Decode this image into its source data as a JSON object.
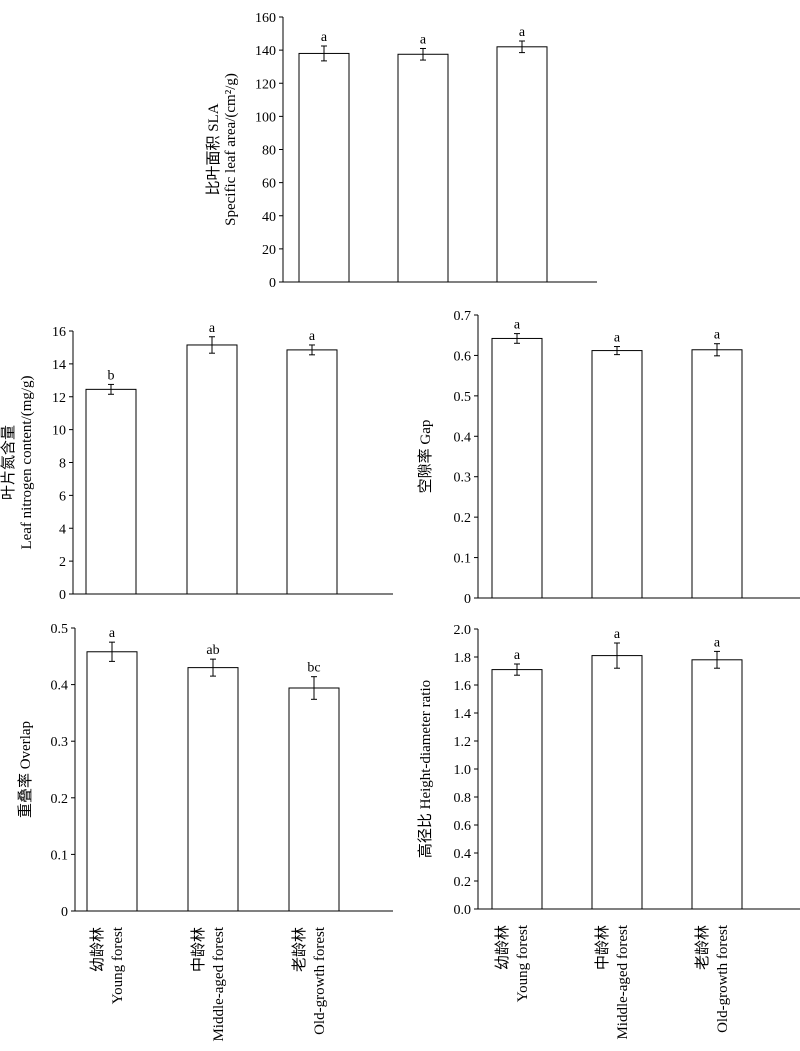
{
  "chart_data": [
    {
      "id": "sla",
      "type": "bar",
      "ylabel_cn": "比叶面积 SLA",
      "ylabel_en": "Specific leaf area/(cm²/g)",
      "ylim": [
        0,
        160
      ],
      "ytick_values": [
        0,
        20,
        40,
        60,
        80,
        100,
        120,
        140,
        160
      ],
      "ytick_labels": [
        "0",
        "20",
        "40",
        "60",
        "80",
        "100",
        "120",
        "140",
        "160"
      ],
      "categories": [
        "Young forest",
        "Middle-aged forest",
        "Old-growth forest"
      ],
      "values": [
        138,
        137.5,
        142
      ],
      "errors": [
        4.5,
        3.5,
        3.5
      ],
      "letters": [
        "a",
        "a",
        "a"
      ]
    },
    {
      "id": "leaf-nitrogen",
      "type": "bar",
      "ylabel_cn": "叶片氮含量",
      "ylabel_en": "Leaf nitrogen content/(mg/g)",
      "ylim": [
        0,
        16
      ],
      "ytick_values": [
        0,
        2,
        4,
        6,
        8,
        10,
        12,
        14,
        16
      ],
      "ytick_labels": [
        "0",
        "2",
        "4",
        "6",
        "8",
        "10",
        "12",
        "14",
        "16"
      ],
      "categories": [
        "Young forest",
        "Middle-aged forest",
        "Old-growth forest"
      ],
      "values": [
        12.45,
        15.15,
        14.85
      ],
      "errors": [
        0.3,
        0.5,
        0.3
      ],
      "letters": [
        "b",
        "a",
        "a"
      ]
    },
    {
      "id": "gap",
      "type": "bar",
      "ylabel_cn": "空隙率 Gap",
      "ylabel_en": "",
      "ylim": [
        0,
        0.7
      ],
      "ytick_values": [
        0,
        0.1,
        0.2,
        0.3,
        0.4,
        0.5,
        0.6,
        0.7
      ],
      "ytick_labels": [
        "0",
        "0.1",
        "0.2",
        "0.3",
        "0.4",
        "0.5",
        "0.6",
        "0.7"
      ],
      "categories": [
        "Young forest",
        "Middle-aged forest",
        "Old-growth forest"
      ],
      "values": [
        0.642,
        0.612,
        0.614
      ],
      "errors": [
        0.012,
        0.01,
        0.015
      ],
      "letters": [
        "a",
        "a",
        "a"
      ]
    },
    {
      "id": "overlap",
      "type": "bar",
      "ylabel_cn": "重叠率 Overlap",
      "ylabel_en": "",
      "ylim": [
        0,
        0.5
      ],
      "ytick_values": [
        0,
        0.1,
        0.2,
        0.3,
        0.4,
        0.5
      ],
      "ytick_labels": [
        "0",
        "0.1",
        "0.2",
        "0.3",
        "0.4",
        "0.5"
      ],
      "categories": [
        "Young forest",
        "Middle-aged forest",
        "Old-growth forest"
      ],
      "values": [
        0.458,
        0.43,
        0.394
      ],
      "errors": [
        0.017,
        0.015,
        0.02
      ],
      "letters": [
        "a",
        "ab",
        "bc"
      ],
      "category_labels_cn": [
        "幼龄林",
        "中龄林",
        "老龄林"
      ],
      "category_labels_en": [
        "Young forest",
        "Middle-aged forest",
        "Old-growth forest"
      ]
    },
    {
      "id": "height-diameter",
      "type": "bar",
      "ylabel_cn": "高径比 Height-diameter ratio",
      "ylabel_en": "",
      "ylim": [
        0,
        2.0
      ],
      "ytick_values": [
        0,
        0.2,
        0.4,
        0.6,
        0.8,
        1.0,
        1.2,
        1.4,
        1.6,
        1.8,
        2.0
      ],
      "ytick_labels": [
        "0.0",
        "0.2",
        "0.4",
        "0.6",
        "0.8",
        "1.0",
        "1.2",
        "1.4",
        "1.6",
        "1.8",
        "2.0"
      ],
      "categories": [
        "Young forest",
        "Middle-aged forest",
        "Old-growth forest"
      ],
      "values": [
        1.71,
        1.81,
        1.78
      ],
      "errors": [
        0.04,
        0.09,
        0.06
      ],
      "letters": [
        "a",
        "a",
        "a"
      ],
      "category_labels_cn": [
        "幼龄林",
        "中龄林",
        "老龄林"
      ],
      "category_labels_en": [
        "Young forest",
        "Middle-aged forest",
        "Old-growth forest"
      ]
    }
  ]
}
